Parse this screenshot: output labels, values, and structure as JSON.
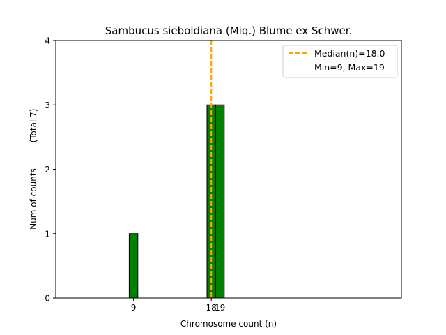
{
  "chart_data": {
    "type": "bar",
    "title": "Sambucus sieboldiana (Miq.) Blume ex Schwer.",
    "xlabel": "Chromosome count (n)",
    "ylabel": "Num of counts",
    "ylabel_secondary": "(Total 7)",
    "xlim": [
      0,
      40
    ],
    "ylim": [
      0,
      4
    ],
    "x_ticks": [
      9,
      18,
      19
    ],
    "y_ticks": [
      0,
      1,
      2,
      3,
      4
    ],
    "bars": [
      {
        "x": 9,
        "value": 1
      },
      {
        "x": 18,
        "value": 3
      },
      {
        "x": 19,
        "value": 3
      }
    ],
    "bar_width": 1,
    "bar_color": "#008000",
    "bar_edge_color": "#000000",
    "median_line": {
      "x": 18.0,
      "color": "#FFA500",
      "style": "dashed"
    },
    "legend": {
      "position": "top-right",
      "entries": [
        {
          "label": "Median(n)=18.0",
          "marker": "dashed-line",
          "color": "#FFA500"
        },
        {
          "label": "Min=9, Max=19",
          "marker": "none"
        }
      ]
    },
    "grid": false
  }
}
